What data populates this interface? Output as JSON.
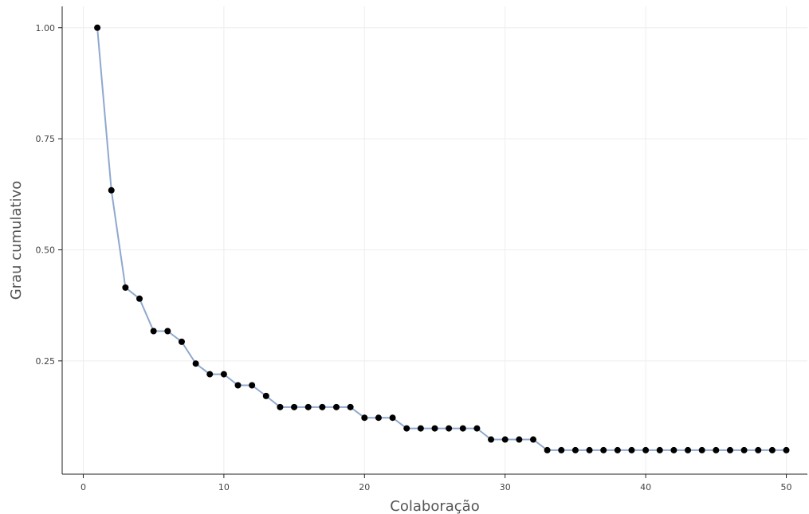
{
  "chart_data": {
    "type": "line",
    "title": "",
    "xlabel": "Colaboração",
    "ylabel": "Grau cumulativo",
    "xlim": [
      -1.5,
      51.5
    ],
    "ylim": [
      -0.005,
      1.048
    ],
    "x_ticks": [
      0,
      10,
      20,
      30,
      40,
      50
    ],
    "x_tick_labels": [
      "0",
      "10",
      "20",
      "30",
      "40",
      "50"
    ],
    "y_ticks": [
      0.25,
      0.5,
      0.75,
      1.0
    ],
    "y_tick_labels": [
      "0.25",
      "0.50",
      "0.75",
      "1.00"
    ],
    "grid": true,
    "legend": "none",
    "line_color": "#8fa8cf",
    "marker_color": "#000000",
    "series": [
      {
        "x": [
          1,
          2,
          3,
          4,
          5,
          6,
          7,
          8,
          9,
          10,
          11,
          12,
          13,
          14,
          15,
          16,
          17,
          18,
          19,
          20,
          21,
          22,
          23,
          24,
          25,
          26,
          27,
          28,
          29,
          30,
          31,
          32,
          33,
          34,
          35,
          36,
          37,
          38,
          39,
          40,
          41,
          42,
          43,
          44,
          45,
          46,
          47,
          48,
          49,
          50
        ],
        "values": [
          1.0,
          0.634,
          0.415,
          0.39,
          0.317,
          0.317,
          0.293,
          0.244,
          0.22,
          0.22,
          0.195,
          0.195,
          0.171,
          0.146,
          0.146,
          0.146,
          0.146,
          0.146,
          0.146,
          0.122,
          0.122,
          0.122,
          0.098,
          0.098,
          0.098,
          0.098,
          0.098,
          0.098,
          0.073,
          0.073,
          0.073,
          0.073,
          0.049,
          0.049,
          0.049,
          0.049,
          0.049,
          0.049,
          0.049,
          0.049,
          0.049,
          0.049,
          0.049,
          0.049,
          0.049,
          0.049,
          0.049,
          0.049,
          0.049,
          0.049
        ]
      }
    ]
  }
}
